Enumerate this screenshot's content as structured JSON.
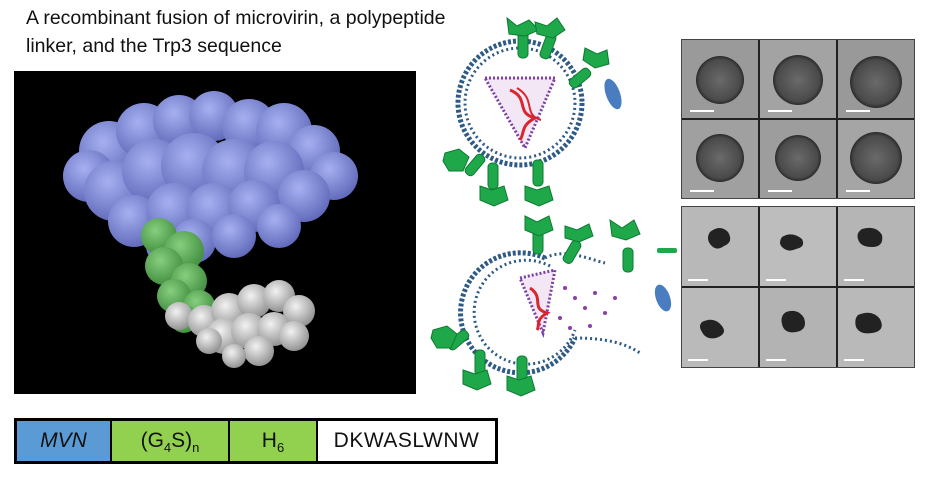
{
  "title": "A recombinant fusion of microvirin, a polypeptide linker, and the Trp3 sequence",
  "sequence_bar": {
    "mvn": "MVN",
    "linker_base": "(G",
    "linker_sub4": "4",
    "linker_mid": "S)",
    "linker_subn": "n",
    "his_base": "H",
    "his_sub": "6",
    "trp": "DKWASLWNW"
  },
  "colors": {
    "mvn_blue": "#5b9bd5",
    "linker_green": "#92d050",
    "protein_blue": "#7b86d6",
    "protein_green": "#5fae5a",
    "protein_gray": "#cfcfcf",
    "membrane_blue": "#2e5a86",
    "spike_green": "#1fa84a",
    "capsid_purple": "#7a3fa8",
    "rna_red": "#d9262e"
  }
}
